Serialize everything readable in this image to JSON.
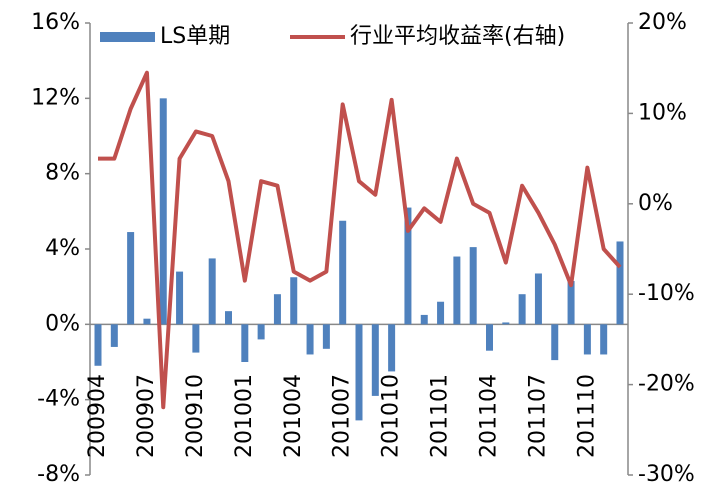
{
  "chart_data": {
    "type": "bar_line",
    "categories": [
      "200904",
      null,
      null,
      "200907",
      null,
      null,
      "200910",
      null,
      null,
      "201001",
      null,
      null,
      "201004",
      null,
      null,
      "201007",
      null,
      null,
      "201010",
      null,
      null,
      "201101",
      null,
      null,
      "201104",
      null,
      null,
      "201107",
      null,
      null,
      "201110",
      null,
      null
    ],
    "series": [
      {
        "name": "LS单期",
        "type": "bar",
        "color": "#4f81bd",
        "values": [
          -2.2,
          -1.2,
          4.9,
          0.3,
          12.0,
          2.8,
          -1.5,
          3.5,
          0.7,
          -2.0,
          -0.8,
          1.6,
          2.5,
          -1.6,
          -1.3,
          5.5,
          -5.1,
          -3.8,
          -2.5,
          6.2,
          0.5,
          1.2,
          3.6,
          4.1,
          -1.4,
          0.1,
          1.6,
          2.7,
          -1.9,
          2.3,
          -1.6,
          -1.6,
          4.4
        ]
      },
      {
        "name": "行业平均收益率(右轴)",
        "type": "line",
        "axis": "y2",
        "color": "#c0504d",
        "values": [
          5,
          5,
          10.5,
          14.5,
          -22.5,
          5,
          8,
          7.5,
          2.5,
          -8.5,
          2.5,
          2,
          -7.5,
          -8.5,
          -7.5,
          11,
          2.5,
          1,
          11.5,
          -3,
          -0.5,
          -2,
          5,
          0,
          -1,
          -6.5,
          2,
          -1,
          -4.5,
          -9,
          4,
          -5,
          -7
        ]
      }
    ],
    "ylim": [
      -8,
      16
    ],
    "yticks": [
      {
        "value": -8,
        "label": "-8%"
      },
      {
        "value": -4,
        "label": "-4%"
      },
      {
        "value": 0,
        "label": "0%"
      },
      {
        "value": 4,
        "label": "4%"
      },
      {
        "value": 8,
        "label": "8%"
      },
      {
        "value": 12,
        "label": "12%"
      },
      {
        "value": 16,
        "label": "16%"
      }
    ],
    "y2lim": [
      -30,
      20
    ],
    "y2ticks": [
      {
        "value": -30,
        "label": "-30%"
      },
      {
        "value": -20,
        "label": "-20%"
      },
      {
        "value": -10,
        "label": "-10%"
      },
      {
        "value": 0,
        "label": "0%"
      },
      {
        "value": 10,
        "label": "10%"
      },
      {
        "value": 20,
        "label": "20%"
      }
    ],
    "legend": "top"
  }
}
